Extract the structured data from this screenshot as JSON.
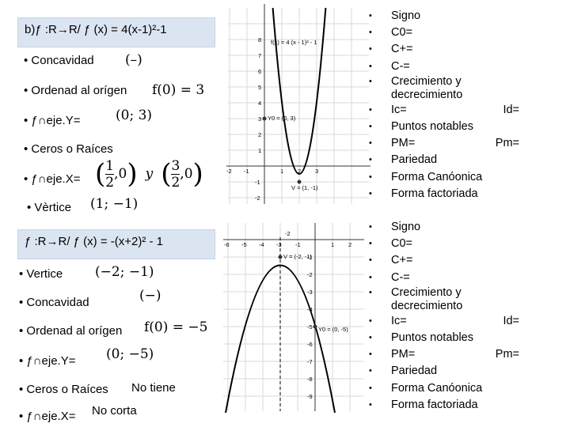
{
  "top": {
    "header": "b)ƒ :R→R/ ƒ (x) = 4(x-1)²-1",
    "concavidad_label": "• Concavidad",
    "concavidad_value": "(–)",
    "ordenada_label": "• Ordenad al orígen",
    "ordenada_value": "f(0) = 3",
    "feje_y_label": "• ƒ∩eje.Y=",
    "feje_y_value": "(0; 3)",
    "ceros_label": "• Ceros o Raíces",
    "feje_x_label": "• ƒ∩eje.X=",
    "root1_num": "1",
    "root1_den": "2",
    "root_y": "y",
    "root2_num": "3",
    "root2_den": "2",
    "zero": "0",
    "vertice_label": "• Vèrtice",
    "vertice_value": "(1; −1)",
    "graph": {
      "formula_label": "f(x) = 4 (x - 1)² - 1",
      "y0_label": "Y0 = (0, 3)",
      "v_label": "V = (1, -1)",
      "x_ticks": [
        "-2",
        "-1",
        "1",
        "2",
        "3"
      ],
      "y_ticks": [
        "8",
        "7",
        "6",
        "5",
        "4",
        "3",
        "2",
        "1",
        "-1",
        "-2"
      ]
    },
    "list": [
      "Signo",
      "C0=",
      "C+=",
      "C-=",
      "Crecimiento y",
      "decrecimiento",
      "Ic=",
      "Puntos notables",
      "PM=",
      "Pariedad",
      "Forma Canóonica",
      "Forma factoriada"
    ],
    "list_right": {
      "ic": "Id=",
      "pm": "Pm="
    }
  },
  "bottom": {
    "header": "ƒ :R→R/ ƒ (x) = -(x+2)² - 1",
    "vertice_label": "• Vertice",
    "vertice_value": "(−2; −1)",
    "concavidad_label": "• Concavidad",
    "concavidad_value": "(−)",
    "ordenada_label": "• Ordenad al orígen",
    "ordenada_value": "f(0) = −5",
    "feje_y_label": "• ƒ∩eje.Y=",
    "feje_y_value": "(0; −5)",
    "ceros_label": "• Ceros o Raíces",
    "ceros_value": "No tiene",
    "feje_x_label": "• ƒ∩eje.X=",
    "feje_x_value": "No corta",
    "graph": {
      "v_label": "V = (-2, -1)",
      "y0_label": "Y0 = (0, -5)",
      "x_ticks": [
        "-6",
        "-5",
        "-4",
        "-3",
        "-2",
        "-1",
        "1",
        "2"
      ],
      "y_ticks": [
        "-1",
        "-2",
        "-3",
        "-4",
        "-5",
        "-6",
        "-7",
        "-8",
        "-9"
      ]
    },
    "list": [
      "Signo",
      "C0=",
      "C+=",
      "C-=",
      "Crecimiento y",
      "decrecimiento",
      "Ic=",
      "Puntos notables",
      "PM=",
      "Pariedad",
      "Forma Canóonica",
      "Forma factoriada"
    ],
    "list_right": {
      "ic": "Id=",
      "pm": "Pm="
    }
  }
}
